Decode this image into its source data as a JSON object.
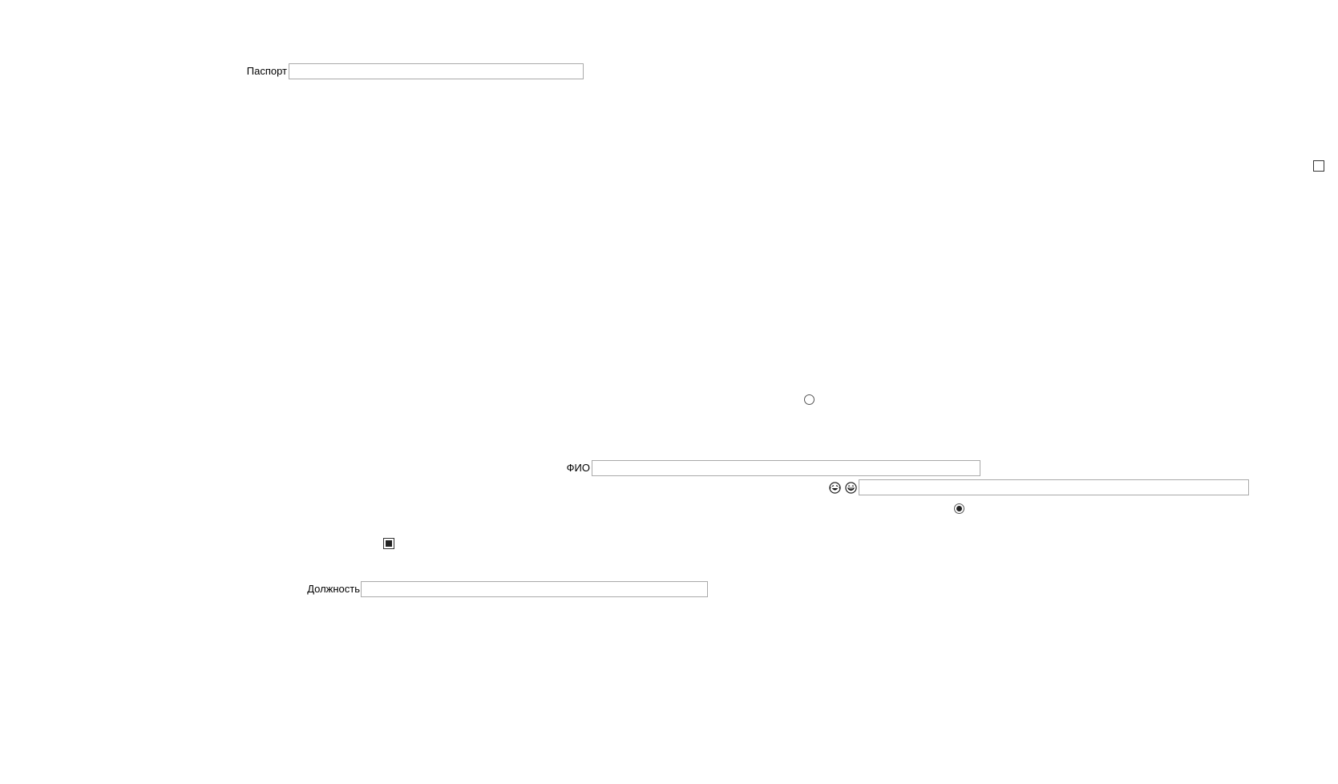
{
  "form": {
    "passport": {
      "label": "Паспорт",
      "value": "",
      "placeholder": ""
    },
    "fio": {
      "label": "ФИО",
      "value": "",
      "placeholder": ""
    },
    "emoji_field": {
      "value": "",
      "placeholder": "",
      "icons": [
        "laughing-face-icon",
        "grinning-face-icon"
      ]
    },
    "position": {
      "label": "Должность",
      "value": "",
      "placeholder": ""
    }
  },
  "controls": {
    "checkbox_top_right": {
      "checked": false
    },
    "checkbox_left": {
      "checked": true
    },
    "radio_middle": {
      "checked": false
    },
    "radio_lower": {
      "checked": true
    }
  }
}
